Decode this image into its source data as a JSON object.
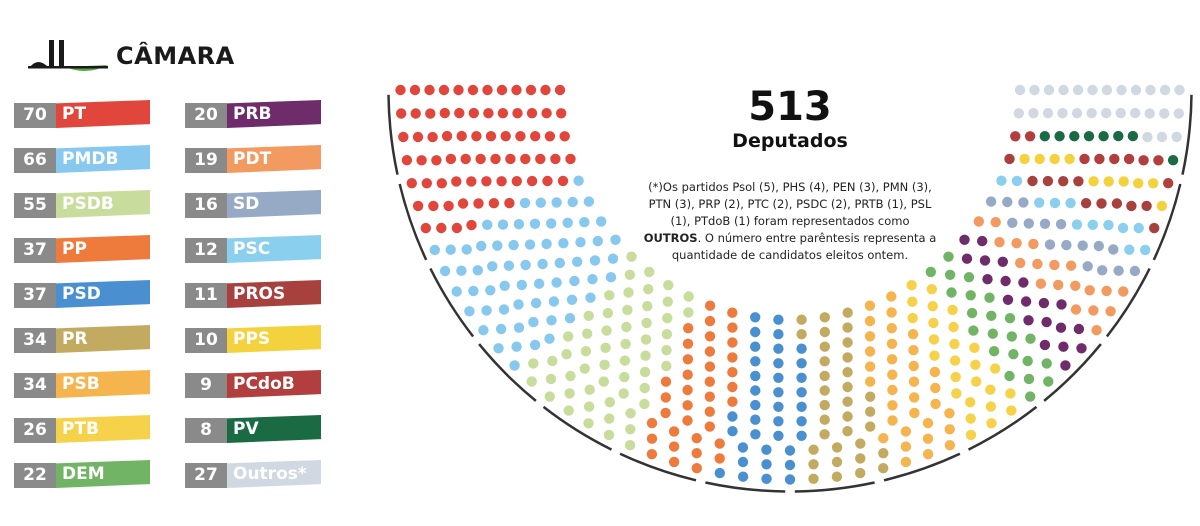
{
  "logo": {
    "text": "CÂMARA"
  },
  "total": {
    "value": "513",
    "label": "Deputados"
  },
  "note": {
    "text_before": "(*)Os partidos Psol (5), PHS (4), PEN (3), PMN (3), PTN (3), PRP (2), PTC (2), PSDC (2), PRTB (1), PSL (1), PTdoB (1) foram representados como ",
    "bold": "OUTROS",
    "text_after": ". O número entre parêntesis representa a quantidade de candidatos eleitos ontem."
  },
  "chart_data": {
    "type": "parliament",
    "total_seats": 513,
    "series": [
      {
        "name": "PT",
        "value": 70,
        "color": "#e0463c"
      },
      {
        "name": "PMDB",
        "value": 66,
        "color": "#86c8ee"
      },
      {
        "name": "PSDB",
        "value": 55,
        "color": "#c8dc9c"
      },
      {
        "name": "PP",
        "value": 37,
        "color": "#ee7a3c"
      },
      {
        "name": "PSD",
        "value": 37,
        "color": "#4a90d0"
      },
      {
        "name": "PR",
        "value": 34,
        "color": "#c2ab60"
      },
      {
        "name": "PSB",
        "value": 34,
        "color": "#f6b44e"
      },
      {
        "name": "PTB",
        "value": 26,
        "color": "#f6d24a"
      },
      {
        "name": "DEM",
        "value": 22,
        "color": "#72b466"
      },
      {
        "name": "PRB",
        "value": 20,
        "color": "#6e2c6a"
      },
      {
        "name": "PDT",
        "value": 19,
        "color": "#f29a60"
      },
      {
        "name": "SD",
        "value": 16,
        "color": "#96aac6"
      },
      {
        "name": "PSC",
        "value": 12,
        "color": "#8ad0ee"
      },
      {
        "name": "PROS",
        "value": 11,
        "color": "#a8413e"
      },
      {
        "name": "PPS",
        "value": 10,
        "color": "#f4d23e"
      },
      {
        "name": "PCdoB",
        "value": 9,
        "color": "#b23e3e"
      },
      {
        "name": "PV",
        "value": 8,
        "color": "#1a6b44"
      },
      {
        "name": "Outros*",
        "value": 27,
        "color": "#d0d8e2"
      }
    ]
  }
}
